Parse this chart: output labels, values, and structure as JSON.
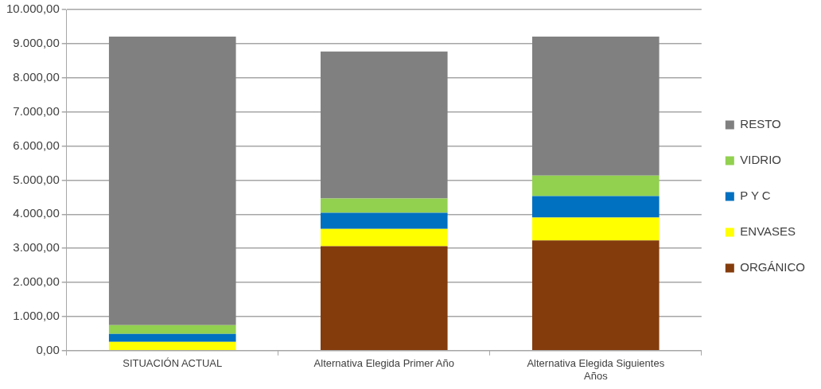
{
  "chart_data": {
    "type": "bar",
    "stacked": true,
    "categories": [
      "SITUACIÓN ACTUAL",
      "Alternativa Elegida Primer Año",
      "Alternativa Elegida Siguientes Años"
    ],
    "series": [
      {
        "name": "ORGÁNICO",
        "color": "#843c0c",
        "values": [
          0,
          3060,
          3230
        ]
      },
      {
        "name": "ENVASES",
        "color": "#ffff00",
        "values": [
          260,
          510,
          670
        ]
      },
      {
        "name": "P Y C",
        "color": "#0070c0",
        "values": [
          230,
          470,
          630
        ]
      },
      {
        "name": "VIDRIO",
        "color": "#92d050",
        "values": [
          260,
          420,
          600
        ]
      },
      {
        "name": "RESTO",
        "color": "#808080",
        "values": [
          8460,
          4310,
          4080
        ]
      }
    ],
    "ylim": [
      0,
      10000
    ],
    "yticks": [
      {
        "value": 0,
        "label": "0,00"
      },
      {
        "value": 1000,
        "label": "1.000,00"
      },
      {
        "value": 2000,
        "label": "2.000,00"
      },
      {
        "value": 3000,
        "label": "3.000,00"
      },
      {
        "value": 4000,
        "label": "4.000,00"
      },
      {
        "value": 5000,
        "label": "5.000,00"
      },
      {
        "value": 6000,
        "label": "6.000,00"
      },
      {
        "value": 7000,
        "label": "7.000,00"
      },
      {
        "value": 8000,
        "label": "8.000,00"
      },
      {
        "value": 9000,
        "label": "9.000,00"
      },
      {
        "value": 10000,
        "label": "10.000,00"
      }
    ],
    "grid": "y",
    "legend": "right"
  }
}
